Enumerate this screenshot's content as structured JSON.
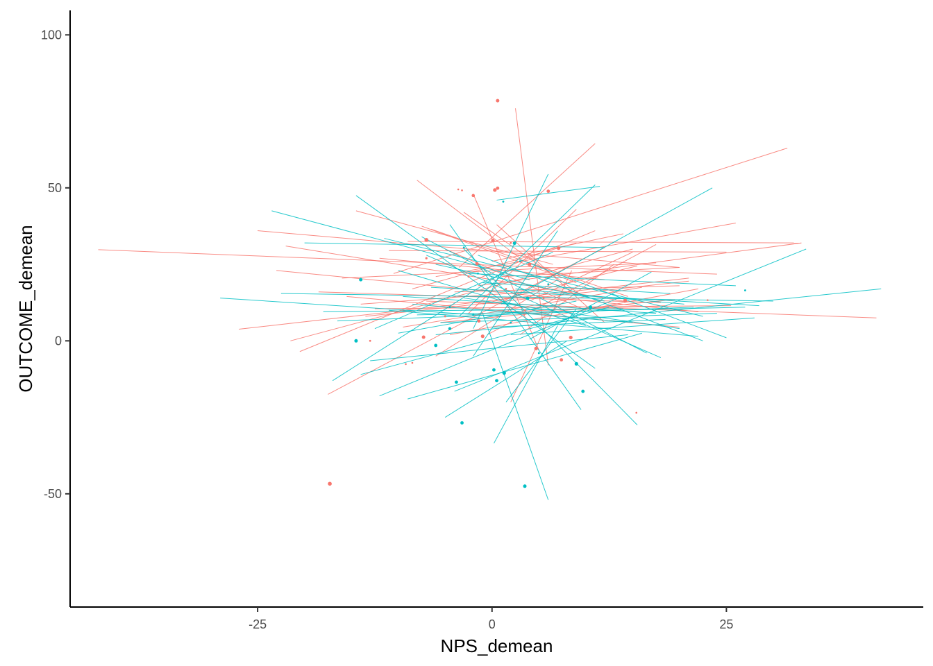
{
  "chart_data": {
    "type": "scatter",
    "title": "",
    "xlabel": "NPS_demean",
    "ylabel": "OUTCOME_demean",
    "xlim": [
      -45,
      46
    ],
    "ylim": [
      -87,
      108
    ],
    "x_ticks": [
      -25,
      0,
      25
    ],
    "x_tick_labels": [
      "-25",
      "0",
      "25"
    ],
    "y_ticks": [
      -50,
      0,
      50,
      100
    ],
    "y_tick_labels": [
      "-50",
      "0",
      "50",
      "100"
    ],
    "grid": false,
    "legend": "none",
    "colors": {
      "red": "#F8766D",
      "teal": "#00BFC4"
    },
    "series": [
      {
        "color": "#F8766D",
        "points": [
          [
            0.6,
            78.5,
            2.5
          ],
          [
            -17.3,
            -46.7,
            2.8
          ],
          [
            -7.0,
            33.0,
            2.8
          ],
          [
            0.1,
            32.8,
            2.6
          ],
          [
            7.1,
            30.3,
            2.6
          ],
          [
            -1.6,
            25.2,
            2.4
          ],
          [
            4.0,
            25.0,
            2.6
          ],
          [
            -7.0,
            27.0,
            1.6
          ],
          [
            14.2,
            13.2,
            2.6
          ],
          [
            0.3,
            49.3,
            2.6
          ],
          [
            0.6,
            49.9,
            2.4
          ],
          [
            6.0,
            48.9,
            2.4
          ],
          [
            -2.0,
            47.5,
            2.3
          ],
          [
            -7.3,
            1.2,
            2.5
          ],
          [
            4.7,
            -2.5,
            2.6
          ],
          [
            8.4,
            1.1,
            2.6
          ],
          [
            7.4,
            -6.2,
            2.4
          ],
          [
            -1.0,
            1.5,
            2.6
          ],
          [
            -1.4,
            6.5,
            2.4
          ],
          [
            -13.0,
            0.0,
            1.4
          ],
          [
            -9.2,
            -7.6,
            1.3
          ],
          [
            -8.5,
            -7.2,
            1.3
          ],
          [
            -3.6,
            49.5,
            1.3
          ],
          [
            -3.2,
            49.2,
            1.3
          ],
          [
            15.4,
            -23.5,
            1.3
          ],
          [
            23.0,
            13.3,
            1.3
          ],
          [
            2.0,
            32.0,
            1.4
          ],
          [
            -5.0,
            8.0,
            1.4
          ],
          [
            3.5,
            10.0,
            1.4
          ],
          [
            -2.5,
            21.0,
            1.4
          ],
          [
            1.5,
            17.0,
            1.3
          ],
          [
            5.5,
            14.0,
            1.3
          ]
        ],
        "lines": [
          [
            -42.0,
            29.8,
            24.0,
            21.8
          ],
          [
            -27.0,
            3.8,
            21.0,
            20.5
          ],
          [
            -25.0,
            36.0,
            20.0,
            24.0
          ],
          [
            -23.0,
            23.0,
            22.0,
            9.5
          ],
          [
            -22.0,
            31.0,
            14.0,
            13.0
          ],
          [
            -21.5,
            0.0,
            15.0,
            30.0
          ],
          [
            -20.5,
            -3.5,
            11.0,
            36.0
          ],
          [
            -17.5,
            -17.5,
            12.0,
            30.5
          ],
          [
            -16.0,
            20.5,
            17.5,
            25.5
          ],
          [
            -15.5,
            14.5,
            20.0,
            4.5
          ],
          [
            -14.5,
            42.5,
            6.5,
            25.0
          ],
          [
            -13.5,
            8.0,
            21.0,
            19.5
          ],
          [
            -12.5,
            10.5,
            25.5,
            11.5
          ],
          [
            -11.0,
            29.5,
            25.0,
            29.0
          ],
          [
            -10.5,
            22.0,
            31.5,
            63.0
          ],
          [
            -9.0,
            32.5,
            33.0,
            32.0
          ],
          [
            -8.0,
            52.5,
            3.0,
            27.0
          ],
          [
            -7.5,
            37.5,
            9.0,
            19.0
          ],
          [
            -7.0,
            13.0,
            41.0,
            7.5
          ],
          [
            -6.0,
            21.0,
            26.0,
            38.5
          ],
          [
            -5.5,
            6.0,
            19.5,
            13.5
          ],
          [
            -5.0,
            30.0,
            10.0,
            10.0
          ],
          [
            -4.0,
            16.0,
            20.0,
            18.0
          ],
          [
            -3.5,
            24.0,
            11.0,
            64.5
          ],
          [
            -3.0,
            42.0,
            9.5,
            15.0
          ],
          [
            -2.5,
            9.0,
            9.0,
            43.0
          ],
          [
            -2.0,
            48.0,
            5.0,
            -3.0
          ],
          [
            -1.5,
            18.0,
            33.0,
            32.0
          ],
          [
            -1.0,
            12.0,
            15.5,
            24.5
          ],
          [
            -0.5,
            2.0,
            17.5,
            31.5
          ],
          [
            0.0,
            26.0,
            14.0,
            35.0
          ],
          [
            0.5,
            38.0,
            12.0,
            6.0
          ],
          [
            1.0,
            21.0,
            20.0,
            24.0
          ],
          [
            2.5,
            76.0,
            6.0,
            -8.0
          ],
          [
            2.0,
            -20.0,
            8.5,
            23.0
          ],
          [
            3.0,
            2.0,
            13.0,
            25.0
          ],
          [
            4.0,
            13.0,
            15.0,
            29.0
          ],
          [
            -6.5,
            36.5,
            14.5,
            14.5
          ],
          [
            -9.5,
            4.5,
            16.0,
            17.5
          ],
          [
            -18.5,
            16.0,
            18.0,
            12.5
          ],
          [
            -12.0,
            27.0,
            12.0,
            20.0
          ],
          [
            -4.5,
            2.0,
            22.0,
            17.0
          ],
          [
            -8.5,
            17.0,
            9.0,
            32.0
          ],
          [
            1.5,
            9.5,
            18.5,
            11.5
          ],
          [
            -14.0,
            12.0,
            4.0,
            16.0
          ],
          [
            -6.0,
            -5.0,
            7.0,
            20.0
          ]
        ]
      },
      {
        "color": "#00BFC4",
        "points": [
          [
            -14.0,
            20.0,
            2.5
          ],
          [
            -14.5,
            0.0,
            2.5
          ],
          [
            3.5,
            -47.5,
            2.5
          ],
          [
            2.4,
            31.9,
            2.5
          ],
          [
            3.8,
            13.9,
            2.4
          ],
          [
            10.5,
            11.0,
            2.6
          ],
          [
            9.0,
            -7.5,
            2.6
          ],
          [
            9.7,
            -16.5,
            2.4
          ],
          [
            1.3,
            -10.5,
            2.6
          ],
          [
            0.5,
            -13.0,
            2.4
          ],
          [
            0.2,
            -9.5,
            2.4
          ],
          [
            -3.2,
            -26.8,
            2.4
          ],
          [
            -3.8,
            -13.5,
            2.4
          ],
          [
            -6.0,
            -1.5,
            2.4
          ],
          [
            -4.5,
            4.0,
            2.2
          ],
          [
            27.0,
            16.5,
            1.4
          ],
          [
            1.2,
            45.5,
            1.4
          ],
          [
            -3.0,
            30.5,
            1.4
          ],
          [
            -4.5,
            11.0,
            1.4
          ],
          [
            2.0,
            6.0,
            1.4
          ],
          [
            5.0,
            -4.0,
            1.4
          ],
          [
            -1.5,
            22.0,
            1.4
          ],
          [
            6.0,
            18.5,
            1.4
          ],
          [
            -2.0,
            8.5,
            1.4
          ],
          [
            3.0,
            26.0,
            1.4
          ]
        ],
        "lines": [
          [
            -29.0,
            14.0,
            1.0,
            8.0
          ],
          [
            -23.5,
            42.5,
            4.0,
            20.0
          ],
          [
            -22.5,
            15.5,
            30.0,
            13.0
          ],
          [
            -20.0,
            32.0,
            12.0,
            30.5
          ],
          [
            -17.0,
            -13.0,
            1.5,
            23.0
          ],
          [
            -14.5,
            47.5,
            11.0,
            -9.0
          ],
          [
            -14.0,
            -11.0,
            12.5,
            11.0
          ],
          [
            -13.0,
            -6.5,
            14.5,
            2.0
          ],
          [
            -12.0,
            -18.0,
            13.5,
            14.0
          ],
          [
            -11.5,
            33.5,
            22.5,
            8.0
          ],
          [
            -11.0,
            10.0,
            22.0,
            1.5
          ],
          [
            -10.0,
            23.0,
            10.0,
            5.0
          ],
          [
            -9.0,
            -19.0,
            16.0,
            2.5
          ],
          [
            -8.0,
            8.5,
            27.0,
            11.0
          ],
          [
            -7.5,
            34.0,
            16.5,
            -4.0
          ],
          [
            -7.0,
            28.0,
            18.0,
            -5.5
          ],
          [
            -6.5,
            17.5,
            28.5,
            11.5
          ],
          [
            -6.0,
            2.0,
            41.5,
            17.0
          ],
          [
            -5.0,
            -25.0,
            8.0,
            0.0
          ],
          [
            -4.5,
            38.0,
            9.5,
            -22.5
          ],
          [
            -4.0,
            -16.5,
            33.5,
            30.0
          ],
          [
            -3.5,
            8.0,
            11.0,
            51.0
          ],
          [
            -3.0,
            30.0,
            15.5,
            -27.5
          ],
          [
            -2.5,
            22.0,
            26.0,
            18.0
          ],
          [
            -2.0,
            4.0,
            6.0,
            54.5
          ],
          [
            -1.5,
            28.0,
            22.5,
            0.0
          ],
          [
            -1.0,
            9.0,
            6.0,
            -52.0
          ],
          [
            0.0,
            4.5,
            18.5,
            7.0
          ],
          [
            0.2,
            -33.5,
            7.0,
            5.0
          ],
          [
            0.5,
            46.0,
            11.5,
            50.5
          ],
          [
            1.0,
            12.0,
            23.5,
            50.0
          ],
          [
            1.5,
            -20.0,
            9.0,
            10.5
          ],
          [
            2.0,
            2.0,
            28.0,
            7.5
          ],
          [
            2.5,
            17.0,
            20.5,
            12.0
          ],
          [
            3.0,
            26.5,
            25.0,
            1.0
          ],
          [
            4.0,
            0.5,
            17.0,
            22.5
          ],
          [
            -16.5,
            6.5,
            21.5,
            11.0
          ],
          [
            -9.5,
            14.5,
            17.5,
            9.0
          ],
          [
            -5.5,
            6.0,
            24.0,
            9.0
          ],
          [
            -12.5,
            4.0,
            6.5,
            29.0
          ],
          [
            -8.5,
            12.0,
            15.0,
            6.0
          ],
          [
            -1.0,
            19.0,
            19.0,
            15.5
          ],
          [
            -10.0,
            2.5,
            9.0,
            13.0
          ],
          [
            -3.0,
            14.0,
            20.0,
            4.0
          ],
          [
            -6.0,
            25.0,
            12.0,
            13.0
          ],
          [
            -18.0,
            9.5,
            14.0,
            10.5
          ],
          [
            -2.0,
            -5.0,
            7.0,
            36.0
          ]
        ]
      }
    ]
  }
}
